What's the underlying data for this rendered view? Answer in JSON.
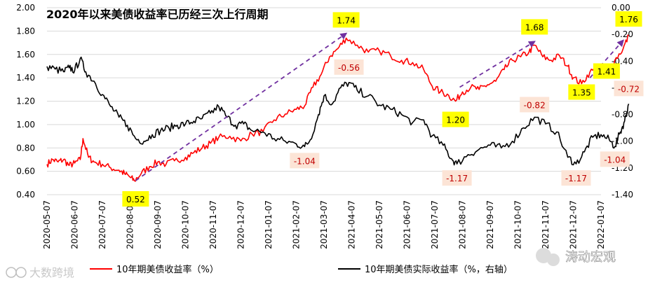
{
  "chart_data": {
    "type": "line",
    "title": "2020年以来美债收益率已历经三次上行周期",
    "x_tick_labels": [
      "2020-05-07",
      "2020-06-07",
      "2020-07-07",
      "2020-08-07",
      "2020-09-07",
      "2020-10-07",
      "2020-11-07",
      "2020-12-07",
      "2021-01-07",
      "2021-02-07",
      "2021-03-07",
      "2021-04-07",
      "2021-05-07",
      "2021-06-07",
      "2021-07-07",
      "2021-08-07",
      "2021-09-07",
      "2021-10-07",
      "2021-11-07",
      "2021-12-07",
      "2022-01-07"
    ],
    "left_axis": {
      "min": 0.4,
      "max": 2.0,
      "step": 0.2,
      "tick_labels": [
        "0.40",
        "0.60",
        "0.80",
        "1.00",
        "1.20",
        "1.40",
        "1.60",
        "1.80",
        "2.00"
      ]
    },
    "right_axis": {
      "min": -1.4,
      "max": 0.0,
      "step": 0.2,
      "tick_labels": [
        "-1.40",
        "-1.20",
        "-1.00",
        "-0.80",
        "-0.60",
        "-0.40",
        "-0.20",
        "0.00"
      ]
    },
    "series": [
      {
        "name": "10年期美债收益率（%）",
        "color": "#ff0000",
        "axis": "left",
        "points": [
          [
            0.0,
            0.66
          ],
          [
            0.2,
            0.7
          ],
          [
            0.4,
            0.68
          ],
          [
            0.6,
            0.7
          ],
          [
            0.8,
            0.65
          ],
          [
            1.0,
            0.67
          ],
          [
            1.2,
            0.7
          ],
          [
            1.3,
            0.88
          ],
          [
            1.5,
            0.72
          ],
          [
            1.7,
            0.68
          ],
          [
            2.0,
            0.66
          ],
          [
            2.3,
            0.63
          ],
          [
            2.6,
            0.61
          ],
          [
            2.8,
            0.58
          ],
          [
            3.0,
            0.55
          ],
          [
            3.15,
            0.52
          ],
          [
            3.4,
            0.58
          ],
          [
            3.7,
            0.64
          ],
          [
            4.0,
            0.68
          ],
          [
            4.3,
            0.66
          ],
          [
            4.6,
            0.69
          ],
          [
            5.0,
            0.72
          ],
          [
            5.3,
            0.76
          ],
          [
            5.6,
            0.8
          ],
          [
            5.9,
            0.84
          ],
          [
            6.2,
            0.89
          ],
          [
            6.6,
            0.9
          ],
          [
            7.0,
            0.86
          ],
          [
            7.4,
            0.92
          ],
          [
            7.8,
            0.94
          ],
          [
            8.2,
            1.04
          ],
          [
            8.6,
            1.09
          ],
          [
            9.0,
            1.13
          ],
          [
            9.3,
            1.16
          ],
          [
            9.6,
            1.32
          ],
          [
            9.9,
            1.43
          ],
          [
            10.2,
            1.58
          ],
          [
            10.5,
            1.65
          ],
          [
            10.8,
            1.74
          ],
          [
            11.2,
            1.68
          ],
          [
            11.6,
            1.62
          ],
          [
            12.0,
            1.63
          ],
          [
            12.4,
            1.59
          ],
          [
            12.8,
            1.55
          ],
          [
            13.2,
            1.53
          ],
          [
            13.6,
            1.47
          ],
          [
            13.9,
            1.33
          ],
          [
            14.2,
            1.28
          ],
          [
            14.5,
            1.25
          ],
          [
            14.75,
            1.2
          ],
          [
            15.0,
            1.28
          ],
          [
            15.3,
            1.32
          ],
          [
            15.6,
            1.3
          ],
          [
            15.9,
            1.34
          ],
          [
            16.2,
            1.37
          ],
          [
            16.5,
            1.47
          ],
          [
            16.8,
            1.55
          ],
          [
            17.1,
            1.58
          ],
          [
            17.4,
            1.62
          ],
          [
            17.6,
            1.68
          ],
          [
            17.9,
            1.58
          ],
          [
            18.2,
            1.55
          ],
          [
            18.5,
            1.59
          ],
          [
            18.8,
            1.5
          ],
          [
            19.0,
            1.4
          ],
          [
            19.3,
            1.35
          ],
          [
            19.6,
            1.45
          ],
          [
            19.9,
            1.48
          ],
          [
            20.2,
            1.41
          ],
          [
            20.5,
            1.55
          ],
          [
            20.8,
            1.65
          ],
          [
            21.0,
            1.76
          ]
        ]
      },
      {
        "name": "10年期美债实际收益率（%，右轴）",
        "color": "#000000",
        "axis": "right",
        "points": [
          [
            0.0,
            -0.44
          ],
          [
            0.3,
            -0.46
          ],
          [
            0.6,
            -0.48
          ],
          [
            0.8,
            -0.45
          ],
          [
            1.0,
            -0.47
          ],
          [
            1.2,
            -0.38
          ],
          [
            1.4,
            -0.48
          ],
          [
            1.7,
            -0.55
          ],
          [
            2.0,
            -0.65
          ],
          [
            2.3,
            -0.74
          ],
          [
            2.6,
            -0.82
          ],
          [
            2.9,
            -0.88
          ],
          [
            3.2,
            -0.98
          ],
          [
            3.5,
            -1.0
          ],
          [
            3.8,
            -0.95
          ],
          [
            4.1,
            -0.92
          ],
          [
            4.4,
            -0.9
          ],
          [
            4.7,
            -0.88
          ],
          [
            5.0,
            -0.87
          ],
          [
            5.3,
            -0.85
          ],
          [
            5.6,
            -0.83
          ],
          [
            5.9,
            -0.79
          ],
          [
            6.2,
            -0.74
          ],
          [
            6.5,
            -0.82
          ],
          [
            6.8,
            -0.88
          ],
          [
            7.1,
            -0.87
          ],
          [
            7.4,
            -0.92
          ],
          [
            7.8,
            -0.93
          ],
          [
            8.2,
            -0.98
          ],
          [
            8.6,
            -1.0
          ],
          [
            9.0,
            -1.02
          ],
          [
            9.3,
            -1.04
          ],
          [
            9.5,
            -0.99
          ],
          [
            9.8,
            -0.8
          ],
          [
            10.0,
            -0.66
          ],
          [
            10.3,
            -0.72
          ],
          [
            10.6,
            -0.6
          ],
          [
            10.9,
            -0.56
          ],
          [
            11.2,
            -0.62
          ],
          [
            11.6,
            -0.66
          ],
          [
            12.0,
            -0.73
          ],
          [
            12.4,
            -0.76
          ],
          [
            12.8,
            -0.8
          ],
          [
            13.2,
            -0.86
          ],
          [
            13.6,
            -0.84
          ],
          [
            13.9,
            -0.96
          ],
          [
            14.3,
            -1.03
          ],
          [
            14.6,
            -1.13
          ],
          [
            14.8,
            -1.17
          ],
          [
            15.2,
            -1.1
          ],
          [
            15.6,
            -1.06
          ],
          [
            16.0,
            -1.03
          ],
          [
            16.4,
            -1.05
          ],
          [
            16.8,
            -1.0
          ],
          [
            17.2,
            -0.9
          ],
          [
            17.6,
            -0.82
          ],
          [
            18.0,
            -0.87
          ],
          [
            18.4,
            -0.93
          ],
          [
            18.8,
            -1.12
          ],
          [
            19.1,
            -1.17
          ],
          [
            19.4,
            -1.08
          ],
          [
            19.7,
            -0.97
          ],
          [
            20.0,
            -0.95
          ],
          [
            20.3,
            -0.99
          ],
          [
            20.5,
            -1.04
          ],
          [
            20.7,
            -0.93
          ],
          [
            20.85,
            -0.85
          ],
          [
            21.0,
            -0.72
          ]
        ]
      }
    ],
    "arrows": [
      [
        [
          3.2,
          0.52
        ],
        [
          10.8,
          1.78
        ]
      ],
      [
        [
          14.9,
          1.32
        ],
        [
          17.6,
          1.71
        ]
      ],
      [
        [
          19.6,
          1.4
        ],
        [
          20.8,
          1.72
        ]
      ]
    ],
    "highlight_labels": [
      {
        "text": "0.52",
        "x": 3.2,
        "value": 0.52,
        "axis": "left",
        "dy": 26
      },
      {
        "text": "1.74",
        "x": 10.8,
        "value": 1.74,
        "axis": "left",
        "dy": -26
      },
      {
        "text": "1.20",
        "x": 14.75,
        "value": 1.2,
        "axis": "left",
        "dy": 26
      },
      {
        "text": "1.68",
        "x": 17.6,
        "value": 1.68,
        "axis": "left",
        "dy": -26
      },
      {
        "text": "1.35",
        "x": 19.3,
        "value": 1.35,
        "axis": "left",
        "dy": 12
      },
      {
        "text": "1.41",
        "x": 20.2,
        "value": 1.41,
        "axis": "left",
        "dy": -8
      },
      {
        "text": "1.76",
        "x": 21.0,
        "value": 1.76,
        "axis": "left",
        "dy": -24
      }
    ],
    "real_labels": [
      {
        "text": "-1.04",
        "x": 9.3,
        "value": -1.04,
        "axis": "right",
        "dy": 20
      },
      {
        "text": "-0.56",
        "x": 10.9,
        "value": -0.56,
        "axis": "right",
        "dy": -22
      },
      {
        "text": "-1.17",
        "x": 14.8,
        "value": -1.17,
        "axis": "right",
        "dy": 20
      },
      {
        "text": "-0.82",
        "x": 17.6,
        "value": -0.82,
        "axis": "right",
        "dy": -18
      },
      {
        "text": "-1.17",
        "x": 19.1,
        "value": -1.17,
        "axis": "right",
        "dy": 20
      },
      {
        "text": "-1.04",
        "x": 20.5,
        "value": -1.04,
        "axis": "right",
        "dy": 18
      },
      {
        "text": "-0.72",
        "x": 21.0,
        "value": -0.72,
        "axis": "right",
        "dy": -22
      }
    ]
  },
  "legend": [
    {
      "label": "10年期美债收益率（%）",
      "color": "#ff0000"
    },
    {
      "label": "10年期美债实际收益率（%，右轴）",
      "color": "#000000"
    }
  ],
  "watermarks": {
    "bottom_left": "大数跨境",
    "bottom_right": "涛动宏观"
  },
  "colors": {
    "highlight_fill": "#ffff00",
    "label_bg": "#fce4d6",
    "real_label_text": "#c00000",
    "arrow": "#7030a0"
  }
}
